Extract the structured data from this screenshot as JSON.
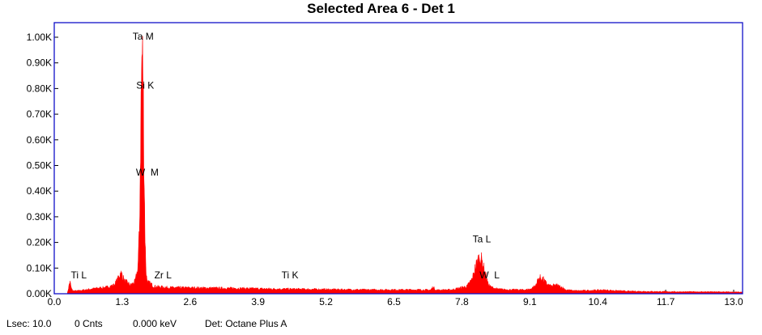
{
  "chart_data": {
    "type": "area",
    "title": "Selected Area 6 - Det 1",
    "xlabel": "",
    "ylabel": "",
    "x_unit": "keV",
    "xlim": [
      0.0,
      13.0
    ],
    "ylim": [
      0.0,
      1.0
    ],
    "x_ticks": [
      "0.0",
      "1.3",
      "2.6",
      "3.9",
      "5.2",
      "6.5",
      "7.8",
      "9.1",
      "10.4",
      "11.7",
      "13.0"
    ],
    "y_ticks": [
      "0.00K",
      "0.10K",
      "0.20K",
      "0.30K",
      "0.40K",
      "0.50K",
      "0.60K",
      "0.70K",
      "0.80K",
      "0.90K",
      "1.00K"
    ],
    "grid": false,
    "series": [
      {
        "color": "#ff0000",
        "x": [
          0.25,
          0.27,
          0.3,
          0.33,
          0.36,
          0.45,
          0.6,
          0.8,
          1.0,
          1.15,
          1.22,
          1.27,
          1.3,
          1.35,
          1.4,
          1.45,
          1.5,
          1.55,
          1.6,
          1.63,
          1.66,
          1.68,
          1.7,
          1.72,
          1.74,
          1.76,
          1.78,
          1.8,
          1.85,
          1.9,
          2.0,
          2.2,
          2.6,
          3.0,
          3.5,
          4.0,
          4.5,
          5.0,
          5.5,
          6.0,
          6.5,
          7.0,
          7.2,
          7.25,
          7.3,
          7.6,
          7.9,
          8.0,
          8.05,
          8.1,
          8.15,
          8.2,
          8.25,
          8.3,
          8.35,
          8.45,
          8.6,
          8.8,
          9.0,
          9.1,
          9.2,
          9.28,
          9.35,
          9.42,
          9.5,
          9.6,
          9.7,
          9.8,
          10.0,
          10.5,
          11.0,
          11.5,
          12.0,
          12.5,
          13.0,
          13.2
        ],
        "y": [
          0.0,
          0.02,
          0.05,
          0.02,
          0.012,
          0.012,
          0.016,
          0.022,
          0.026,
          0.035,
          0.06,
          0.085,
          0.075,
          0.05,
          0.045,
          0.035,
          0.04,
          0.05,
          0.1,
          0.25,
          0.75,
          0.97,
          0.88,
          0.5,
          0.2,
          0.08,
          0.05,
          0.045,
          0.04,
          0.03,
          0.028,
          0.025,
          0.024,
          0.023,
          0.022,
          0.02,
          0.019,
          0.018,
          0.017,
          0.016,
          0.016,
          0.016,
          0.015,
          0.028,
          0.015,
          0.016,
          0.03,
          0.06,
          0.1,
          0.13,
          0.15,
          0.12,
          0.08,
          0.04,
          0.028,
          0.02,
          0.017,
          0.016,
          0.016,
          0.018,
          0.03,
          0.065,
          0.06,
          0.04,
          0.03,
          0.035,
          0.028,
          0.015,
          0.012,
          0.015,
          0.01,
          0.009,
          0.008,
          0.008,
          0.007,
          0.006
        ]
      }
    ],
    "annotations": [
      {
        "label": "Ta M",
        "x": 1.7,
        "y": 0.99
      },
      {
        "label": "Si K",
        "x": 1.74,
        "y": 0.8
      },
      {
        "label": "W  M",
        "x": 1.78,
        "y": 0.46
      },
      {
        "label": "Ti L",
        "x": 0.47,
        "y": 0.06
      },
      {
        "label": "Zr L",
        "x": 2.08,
        "y": 0.06
      },
      {
        "label": "Ti K",
        "x": 4.51,
        "y": 0.06
      },
      {
        "label": "Ta L",
        "x": 8.18,
        "y": 0.2
      },
      {
        "label": "W  L",
        "x": 8.33,
        "y": 0.06
      }
    ]
  },
  "status": {
    "lsec": "Lsec: 10.0",
    "cnts": "0 Cnts",
    "kev": "0.000 keV",
    "det": "Det: Octane Plus A"
  },
  "colors": {
    "spectrum": "#ff0000",
    "frame": "#1010c8"
  }
}
